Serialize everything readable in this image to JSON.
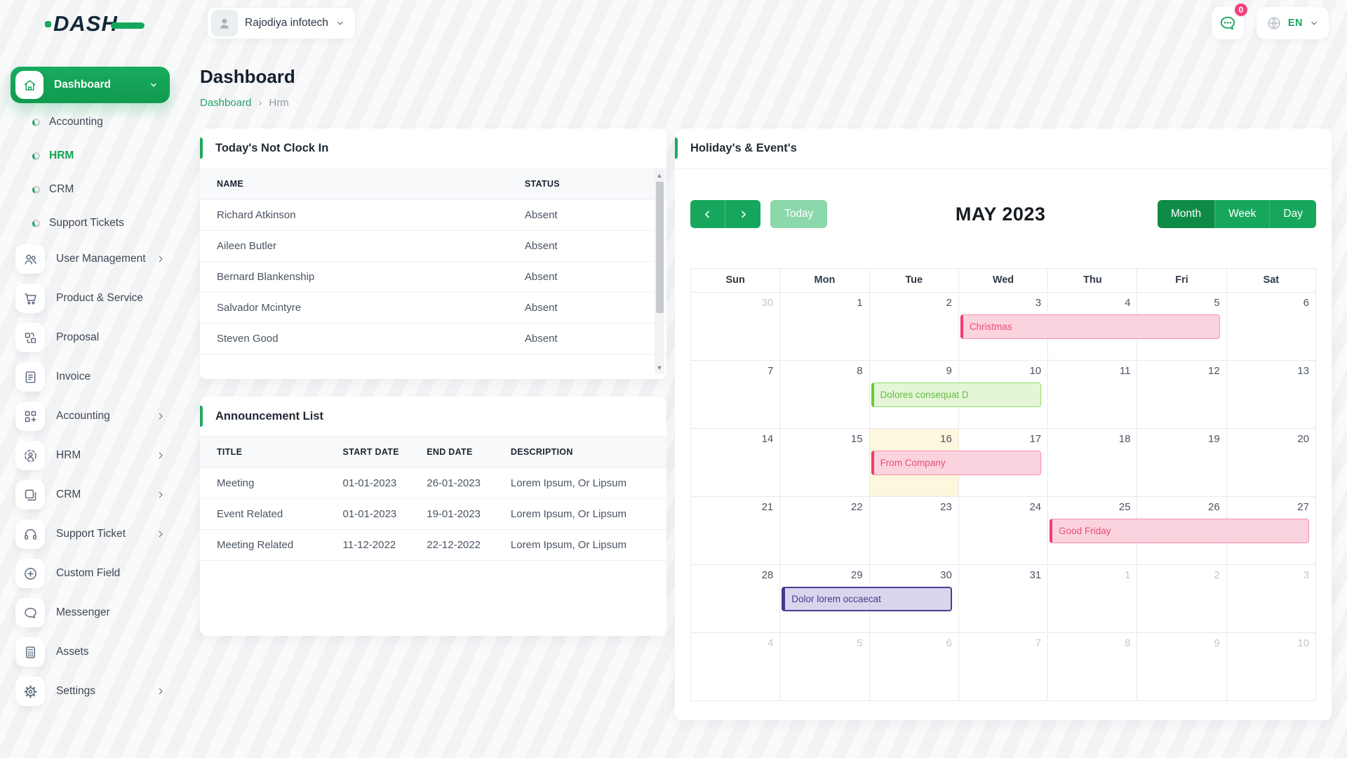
{
  "topbar": {
    "logo": "DASH",
    "company_name": "Rajodiya infotech",
    "messages_badge": "0",
    "language": "EN"
  },
  "page": {
    "title": "Dashboard",
    "breadcrumb_root": "Dashboard",
    "breadcrumb_current": "Hrm"
  },
  "sidebar": {
    "dashboard_label": "Dashboard",
    "dashboard_children": [
      {
        "label": "Accounting",
        "active": false
      },
      {
        "label": "HRM",
        "active": true
      },
      {
        "label": "CRM",
        "active": false
      },
      {
        "label": "Support Tickets",
        "active": false
      }
    ],
    "items": [
      {
        "label": "User Management",
        "icon": "users-icon",
        "chevron": true
      },
      {
        "label": "Product & Service",
        "icon": "cart-icon",
        "chevron": false
      },
      {
        "label": "Proposal",
        "icon": "proposal-icon",
        "chevron": false
      },
      {
        "label": "Invoice",
        "icon": "invoice-icon",
        "chevron": false
      },
      {
        "label": "Accounting",
        "icon": "accounting-grid-icon",
        "chevron": true
      },
      {
        "label": "HRM",
        "icon": "hrm-icon",
        "chevron": true
      },
      {
        "label": "CRM",
        "icon": "crm-icon",
        "chevron": true
      },
      {
        "label": "Support Ticket",
        "icon": "headset-icon",
        "chevron": true
      },
      {
        "label": "Custom Field",
        "icon": "plus-circle-icon",
        "chevron": false
      },
      {
        "label": "Messenger",
        "icon": "chat-bubble-icon",
        "chevron": false
      },
      {
        "label": "Assets",
        "icon": "calculator-icon",
        "chevron": false
      },
      {
        "label": "Settings",
        "icon": "gear-icon",
        "chevron": true
      }
    ]
  },
  "clock_in_card": {
    "title": "Today's Not Clock In",
    "columns": [
      "NAME",
      "STATUS"
    ],
    "rows": [
      {
        "name": "Richard Atkinson",
        "status": "Absent"
      },
      {
        "name": "Aileen Butler",
        "status": "Absent"
      },
      {
        "name": "Bernard Blankenship",
        "status": "Absent"
      },
      {
        "name": "Salvador Mcintyre",
        "status": "Absent"
      },
      {
        "name": "Steven Good",
        "status": "Absent"
      }
    ]
  },
  "announcement_card": {
    "title": "Announcement List",
    "columns": [
      "TITLE",
      "START DATE",
      "END DATE",
      "DESCRIPTION"
    ],
    "rows": [
      {
        "title": "Meeting",
        "start": "01-01-2023",
        "end": "26-01-2023",
        "description": "Lorem Ipsum, Or Lipsum"
      },
      {
        "title": "Event Related",
        "start": "01-01-2023",
        "end": "19-01-2023",
        "description": "Lorem Ipsum, Or Lipsum"
      },
      {
        "title": "Meeting Related",
        "start": "11-12-2022",
        "end": "22-12-2022",
        "description": "Lorem Ipsum, Or Lipsum"
      }
    ]
  },
  "calendar": {
    "card_title": "Holiday's & Event's",
    "title": "MAY 2023",
    "today_label": "Today",
    "views": [
      "Month",
      "Week",
      "Day"
    ],
    "active_view": "Month",
    "weekdays": [
      "Sun",
      "Mon",
      "Tue",
      "Wed",
      "Thu",
      "Fri",
      "Sat"
    ],
    "weeks": [
      [
        {
          "n": 30,
          "out": true
        },
        {
          "n": 1
        },
        {
          "n": 2
        },
        {
          "n": 3
        },
        {
          "n": 4
        },
        {
          "n": 5
        },
        {
          "n": 6
        }
      ],
      [
        {
          "n": 7
        },
        {
          "n": 8
        },
        {
          "n": 9
        },
        {
          "n": 10
        },
        {
          "n": 11
        },
        {
          "n": 12
        },
        {
          "n": 13
        }
      ],
      [
        {
          "n": 14
        },
        {
          "n": 15
        },
        {
          "n": 16,
          "today": true
        },
        {
          "n": 17
        },
        {
          "n": 18
        },
        {
          "n": 19
        },
        {
          "n": 20
        }
      ],
      [
        {
          "n": 21
        },
        {
          "n": 22
        },
        {
          "n": 23
        },
        {
          "n": 24
        },
        {
          "n": 25
        },
        {
          "n": 26
        },
        {
          "n": 27
        }
      ],
      [
        {
          "n": 28
        },
        {
          "n": 29
        },
        {
          "n": 30
        },
        {
          "n": 31
        },
        {
          "n": 1,
          "out": true
        },
        {
          "n": 2,
          "out": true
        },
        {
          "n": 3,
          "out": true
        }
      ],
      [
        {
          "n": 4,
          "out": true
        },
        {
          "n": 5,
          "out": true
        },
        {
          "n": 6,
          "out": true
        },
        {
          "n": 7,
          "out": true
        },
        {
          "n": 8,
          "out": true
        },
        {
          "n": 9,
          "out": true
        },
        {
          "n": 10,
          "out": true
        }
      ]
    ],
    "events": [
      {
        "label": "Christmas",
        "week": 0,
        "col": 3,
        "span": 3,
        "color": "pink"
      },
      {
        "label": "Dolores consequat D",
        "week": 1,
        "col": 2,
        "span": 2,
        "color": "green"
      },
      {
        "label": "From Company",
        "week": 2,
        "col": 2,
        "span": 2,
        "color": "pink"
      },
      {
        "label": "Good Friday",
        "week": 3,
        "col": 4,
        "span": 3,
        "color": "pink"
      },
      {
        "label": "Dolor lorem occaecat",
        "week": 4,
        "col": 1,
        "span": 2,
        "color": "purple"
      }
    ]
  },
  "colors": {
    "primary_green": "#17a75c",
    "dark_green": "#0e8c46",
    "light_green": "#8bd8ab",
    "badge_pink": "#f4407c",
    "today_cell": "#fcf7dd",
    "event_pink": {
      "bg": "#fbd3de",
      "border": "#f690ad",
      "accent": "#f23b6e",
      "text": "#e94e75"
    },
    "event_green": {
      "bg": "#e5f6d7",
      "border": "#90dc66",
      "accent": "#64cd35",
      "text": "#63bd3e"
    },
    "event_purple": {
      "bg": "#d9d5ed",
      "border": "#45408f",
      "accent": "#3f3a8e",
      "text": "#433d8f"
    }
  }
}
